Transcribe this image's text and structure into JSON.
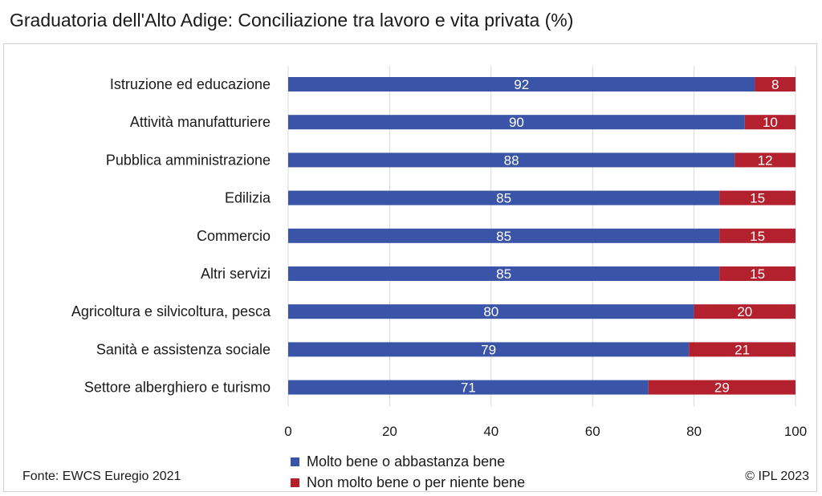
{
  "title": "Graduatoria dell'Alto Adige: Conciliazione tra lavoro e vita privata (%)",
  "source": "Fonte: EWCS Euregio 2021",
  "copyright": "© IPL 2023",
  "chart_data": {
    "type": "bar",
    "orientation": "horizontal",
    "stacked": true,
    "categories": [
      "Istruzione ed educazione",
      "Attività manufatturiere",
      "Pubblica amministrazione",
      "Edilizia",
      "Commercio",
      "Altri servizi",
      "Agricoltura e silvicoltura, pesca",
      "Sanità e assistenza sociale",
      "Settore alberghiero e turismo"
    ],
    "series": [
      {
        "name": "Molto bene o abbastanza bene",
        "color": "#3a55a8",
        "values": [
          92,
          90,
          88,
          85,
          85,
          85,
          80,
          79,
          71
        ]
      },
      {
        "name": "Non molto bene o per niente bene",
        "color": "#b3202e",
        "values": [
          8,
          10,
          12,
          15,
          15,
          15,
          20,
          21,
          29
        ]
      }
    ],
    "xlim": [
      0,
      100
    ],
    "xticks": [
      0,
      20,
      40,
      60,
      80,
      100
    ],
    "grid": true,
    "legend_position": "bottom"
  }
}
